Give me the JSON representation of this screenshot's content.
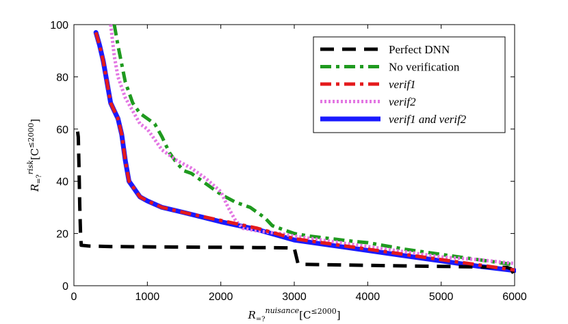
{
  "chart_data": {
    "type": "line",
    "title": "",
    "xlabel": "R=?nuisance [C≤2000]",
    "ylabel": "R=?risk [C≤2000]",
    "xlim": [
      0,
      6000
    ],
    "ylim": [
      0,
      100
    ],
    "xticks": [
      0,
      1000,
      2000,
      3000,
      4000,
      5000,
      6000
    ],
    "yticks": [
      0,
      20,
      40,
      60,
      80,
      100
    ],
    "grid": false,
    "legend_position": "top-right",
    "series": [
      {
        "name": "Perfect DNN",
        "color": "#000000",
        "style": "dashed",
        "points": [
          [
            50,
            59
          ],
          [
            60,
            57
          ],
          [
            70,
            45
          ],
          [
            80,
            30
          ],
          [
            90,
            20
          ],
          [
            100,
            15.5
          ],
          [
            200,
            15.2
          ],
          [
            500,
            15
          ],
          [
            1000,
            14.9
          ],
          [
            1500,
            14.8
          ],
          [
            2000,
            14.7
          ],
          [
            2500,
            14.6
          ],
          [
            2900,
            14.5
          ],
          [
            3000,
            14.4
          ],
          [
            3050,
            8.5
          ],
          [
            3100,
            8.2
          ],
          [
            3500,
            8
          ],
          [
            4000,
            7.8
          ],
          [
            4500,
            7.6
          ],
          [
            5000,
            7.4
          ],
          [
            5500,
            7.2
          ],
          [
            5900,
            7
          ],
          [
            5950,
            6.5
          ],
          [
            6000,
            4
          ]
        ]
      },
      {
        "name": "No verification",
        "color": "#1f9a1f",
        "style": "dashdot",
        "points": [
          [
            550,
            100
          ],
          [
            600,
            92
          ],
          [
            700,
            78
          ],
          [
            800,
            70
          ],
          [
            900,
            66
          ],
          [
            1000,
            64
          ],
          [
            1100,
            62
          ],
          [
            1200,
            57
          ],
          [
            1300,
            51
          ],
          [
            1400,
            47
          ],
          [
            1500,
            44
          ],
          [
            1600,
            43
          ],
          [
            1800,
            39
          ],
          [
            2000,
            35
          ],
          [
            2200,
            32
          ],
          [
            2400,
            30
          ],
          [
            2600,
            26
          ],
          [
            2700,
            23
          ],
          [
            2800,
            22
          ],
          [
            3000,
            20
          ],
          [
            3200,
            19
          ],
          [
            3500,
            18
          ],
          [
            3800,
            17
          ],
          [
            4000,
            16.5
          ],
          [
            4200,
            15.5
          ],
          [
            4500,
            14
          ],
          [
            5000,
            12
          ],
          [
            5500,
            10
          ],
          [
            6000,
            8
          ]
        ]
      },
      {
        "name": "verif1",
        "color": "#e41a1c",
        "style": "dashdot",
        "points": [
          [
            300,
            97
          ],
          [
            350,
            92
          ],
          [
            400,
            86
          ],
          [
            450,
            78
          ],
          [
            500,
            70
          ],
          [
            550,
            67
          ],
          [
            600,
            64
          ],
          [
            650,
            58
          ],
          [
            700,
            48
          ],
          [
            750,
            40
          ],
          [
            800,
            38
          ],
          [
            900,
            34
          ],
          [
            1000,
            32.5
          ],
          [
            1200,
            30
          ],
          [
            1500,
            28
          ],
          [
            2000,
            25
          ],
          [
            2500,
            22
          ],
          [
            3000,
            18
          ],
          [
            3500,
            16
          ],
          [
            4000,
            14
          ],
          [
            4500,
            12
          ],
          [
            5000,
            10
          ],
          [
            5500,
            8
          ],
          [
            6000,
            6
          ]
        ]
      },
      {
        "name": "verif2",
        "color": "#e377e3",
        "style": "dotted",
        "points": [
          [
            500,
            100
          ],
          [
            550,
            88
          ],
          [
            600,
            80
          ],
          [
            700,
            72
          ],
          [
            800,
            67
          ],
          [
            900,
            62
          ],
          [
            1000,
            60
          ],
          [
            1100,
            56
          ],
          [
            1200,
            52
          ],
          [
            1400,
            48
          ],
          [
            1600,
            45
          ],
          [
            1800,
            41
          ],
          [
            2000,
            36
          ],
          [
            2100,
            30
          ],
          [
            2200,
            25
          ],
          [
            2300,
            22
          ],
          [
            2500,
            21
          ],
          [
            2800,
            20
          ],
          [
            3000,
            19
          ],
          [
            3500,
            17
          ],
          [
            4000,
            15
          ],
          [
            4500,
            13
          ],
          [
            5000,
            11
          ],
          [
            5500,
            10
          ],
          [
            6000,
            8.5
          ]
        ]
      },
      {
        "name": "verif1 and verif2",
        "color": "#1a1aff",
        "style": "solid",
        "points": [
          [
            300,
            97
          ],
          [
            350,
            92
          ],
          [
            400,
            86
          ],
          [
            450,
            78
          ],
          [
            500,
            70
          ],
          [
            550,
            67
          ],
          [
            600,
            64
          ],
          [
            650,
            58
          ],
          [
            700,
            48
          ],
          [
            750,
            40
          ],
          [
            800,
            38
          ],
          [
            900,
            34
          ],
          [
            1000,
            32.5
          ],
          [
            1200,
            30
          ],
          [
            1500,
            28
          ],
          [
            2000,
            24.5
          ],
          [
            2500,
            21.5
          ],
          [
            3000,
            17.5
          ],
          [
            3500,
            15.5
          ],
          [
            4000,
            13.5
          ],
          [
            4500,
            11.5
          ],
          [
            5000,
            9.5
          ],
          [
            5500,
            7.5
          ],
          [
            6000,
            5.8
          ]
        ]
      }
    ],
    "legend": {
      "entries": [
        {
          "text": "Perfect DNN"
        },
        {
          "text": "No verification"
        },
        {
          "text": "verif1"
        },
        {
          "text": "verif2"
        },
        {
          "text": "verif1 and verif2"
        }
      ]
    },
    "axis_text": {
      "x_main": "R",
      "x_sub": "=?",
      "x_sup": "nuisance",
      "x_bracket": "[C",
      "x_le": "≤2000",
      "x_close": "]",
      "y_main": "R",
      "y_sub": "=?",
      "y_sup": "risk",
      "y_bracket": "[C",
      "y_le": "≤2000",
      "y_close": "]"
    }
  }
}
